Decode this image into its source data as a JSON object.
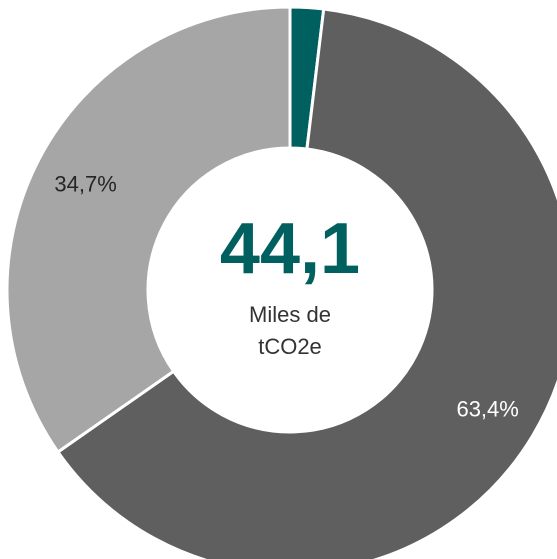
{
  "chart_data": {
    "type": "pie",
    "variant": "donut",
    "slices": [
      {
        "value": 1.9,
        "color": "#005f5f"
      },
      {
        "value": 63.4,
        "color": "#5f5f5f",
        "label": "63,4%"
      },
      {
        "value": 34.7,
        "color": "#a6a6a6",
        "label": "34,7%"
      }
    ],
    "center": {
      "value": "44,1",
      "unit_line1": "Miles de",
      "unit_line2": "tCO2e",
      "value_color": "#005f5f"
    },
    "label_colors": {
      "on_dark": "#ffffff",
      "on_light": "#262626"
    }
  }
}
